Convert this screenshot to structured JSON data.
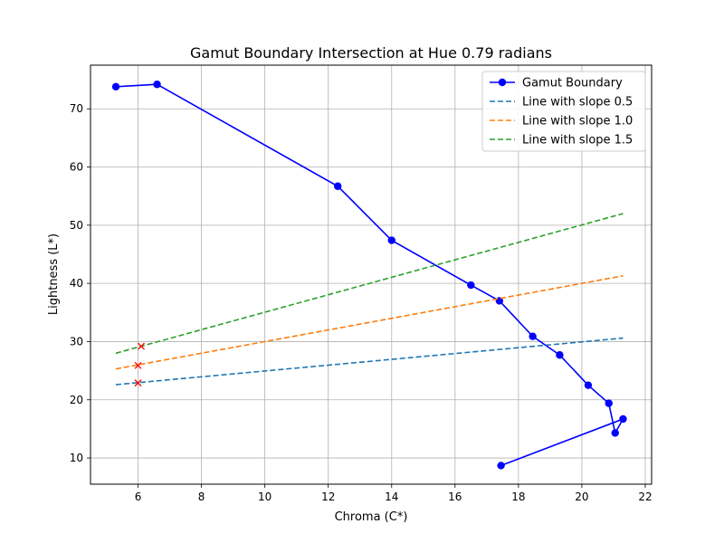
{
  "chart_data": {
    "type": "line",
    "title": "Gamut Boundary Intersection at Hue 0.79 radians",
    "xlabel": "Chroma (C*)",
    "ylabel": "Lightness (L*)",
    "xlim": [
      4.5,
      22.2
    ],
    "ylim": [
      5.5,
      77.5
    ],
    "xticks": [
      6,
      8,
      10,
      12,
      14,
      16,
      18,
      20,
      22
    ],
    "yticks": [
      10,
      20,
      30,
      40,
      50,
      60,
      70
    ],
    "grid": true,
    "legend_position": "upper right",
    "series": [
      {
        "name": "Gamut Boundary",
        "style": "solid-with-markers",
        "color": "#0000ff",
        "x": [
          5.3,
          6.6,
          12.3,
          14.0,
          16.5,
          17.4,
          18.45,
          19.3,
          20.2,
          20.85,
          21.05,
          21.3,
          17.45
        ],
        "y": [
          73.8,
          74.2,
          56.7,
          47.4,
          39.7,
          37.0,
          30.9,
          27.7,
          22.5,
          19.4,
          14.3,
          16.7,
          8.7
        ]
      },
      {
        "name": "Line with slope 0.5",
        "style": "dashed",
        "color": "#1f77b4",
        "x": [
          5.3,
          21.3
        ],
        "y": [
          22.6,
          30.6
        ]
      },
      {
        "name": "Line with slope 1.0",
        "style": "dashed",
        "color": "#ff7f0e",
        "x": [
          5.3,
          21.3
        ],
        "y": [
          25.3,
          41.3
        ]
      },
      {
        "name": "Line with slope 1.5",
        "style": "dashed",
        "color": "#2ca02c",
        "x": [
          5.3,
          21.3
        ],
        "y": [
          28.0,
          52.0
        ]
      }
    ],
    "markers": {
      "symbol": "x",
      "color": "#ff0000",
      "points": [
        {
          "x": 6.0,
          "y": 22.9
        },
        {
          "x": 6.0,
          "y": 25.9
        },
        {
          "x": 6.1,
          "y": 29.2
        }
      ]
    }
  }
}
